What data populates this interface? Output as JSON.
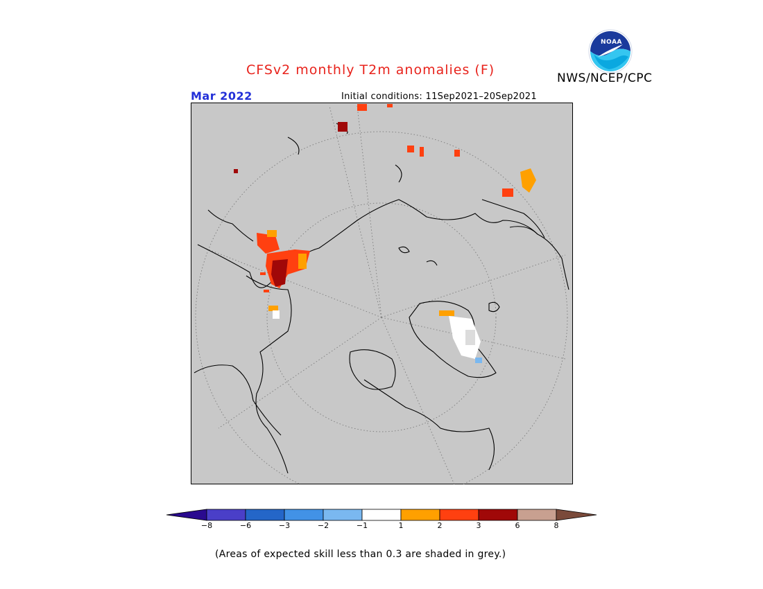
{
  "title": "CFSv2 monthly T2m anomalies (F)",
  "agency": "NWS/NCEP/CPC",
  "logo_text": "NOAA",
  "valid_month": "Mar 2022",
  "initial_conditions": "Initial conditions: 11Sep2021–20Sep2021",
  "footnote": "(Areas of expected skill less than 0.3 are shaded in grey.)",
  "colors": {
    "title": "#e8231c",
    "month": "#2330d8",
    "map_background": "#c8c8c8",
    "coastline": "#000000",
    "graticule": "#808080"
  },
  "colorbar": {
    "bins": [
      {
        "label": "< -8",
        "color": "#2a0a8f"
      },
      {
        "label": "-8 to -6",
        "color": "#4a3fc8"
      },
      {
        "label": "-6 to -3",
        "color": "#2466c8"
      },
      {
        "label": "-3 to -2",
        "color": "#4292e6"
      },
      {
        "label": "-2 to -1",
        "color": "#7ab8f0"
      },
      {
        "label": "-1 to 1",
        "color": "#ffffff"
      },
      {
        "label": "1 to 2",
        "color": "#ffa000"
      },
      {
        "label": "2 to 3",
        "color": "#ff4010"
      },
      {
        "label": "3 to 6",
        "color": "#a00808"
      },
      {
        "label": "6 to 8",
        "color": "#c8a090"
      },
      {
        "label": "> 8",
        "color": "#7a4a3a"
      }
    ],
    "ticks": [
      "−8",
      "−6",
      "−3",
      "−2",
      "−1",
      "1",
      "2",
      "3",
      "6",
      "8"
    ]
  }
}
